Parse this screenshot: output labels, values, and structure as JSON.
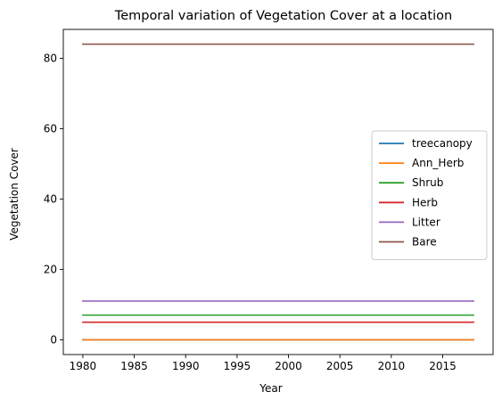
{
  "chart_data": {
    "type": "line",
    "title": "Temporal variation of Vegetation Cover at a location",
    "xlabel": "Year",
    "ylabel": "Vegetation Cover",
    "x": [
      1980,
      2018
    ],
    "xlim": [
      1978.1,
      2019.9
    ],
    "ylim": [
      -4.2,
      88.2
    ],
    "xticks": [
      "1980",
      "1985",
      "1990",
      "1995",
      "2000",
      "2005",
      "2010",
      "2015"
    ],
    "yticks": [
      "0",
      "20",
      "40",
      "60",
      "80"
    ],
    "grid": false,
    "legend_position": "center-right",
    "series": [
      {
        "name": "treecanopy",
        "color": "#1f77b4",
        "values": [
          0,
          0
        ]
      },
      {
        "name": "Ann_Herb",
        "color": "#ff7f0e",
        "values": [
          0,
          0
        ]
      },
      {
        "name": "Shrub",
        "color": "#2ca02c",
        "values": [
          7,
          7
        ]
      },
      {
        "name": "Herb",
        "color": "#d62728",
        "values": [
          5,
          5
        ]
      },
      {
        "name": "Litter",
        "color": "#9467bd",
        "values": [
          11,
          11
        ]
      },
      {
        "name": "Bare",
        "color": "#8c564b",
        "values": [
          84,
          84
        ]
      }
    ]
  }
}
